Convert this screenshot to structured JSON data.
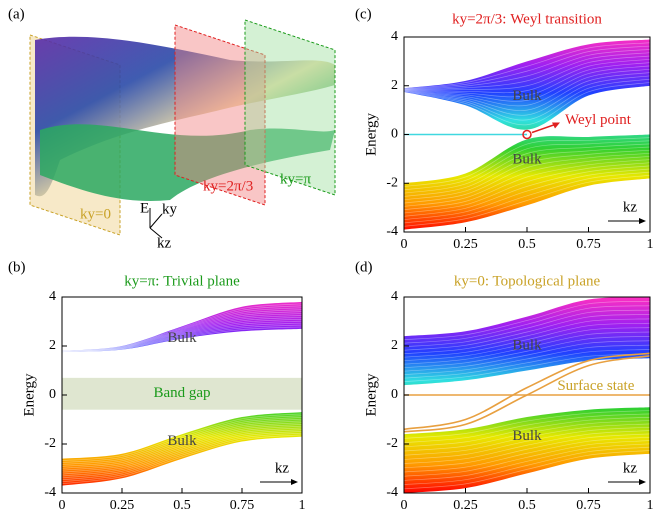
{
  "panels": [
    "(a)",
    "(b)",
    "(c)",
    "(d)"
  ],
  "illustration": {
    "planes": [
      "ky=0",
      "ky=2π/3",
      "ky=π"
    ],
    "axes": [
      "E",
      "ky",
      "kz"
    ]
  },
  "chart_data": [
    {
      "type": "band",
      "title": "ky=π: Trivial plane",
      "title_color": "#1a9a1a",
      "ylabel": "Energy",
      "xlabel": "kz",
      "x": [
        0,
        0.25,
        0.5,
        0.75,
        1
      ],
      "xlim": [
        0,
        1
      ],
      "ylim": [
        -4,
        4
      ],
      "xticks": [
        0,
        0.25,
        0.5,
        0.75,
        1
      ],
      "yticks": [
        -4,
        -2,
        0,
        2,
        4
      ],
      "bands": [
        {
          "lower": [
            1.75,
            1.85,
            2.3,
            2.6,
            2.7
          ],
          "upper": [
            1.8,
            2.0,
            2.8,
            3.6,
            3.8
          ]
        },
        {
          "lower": [
            -3.7,
            -3.4,
            -2.6,
            -1.9,
            -1.7
          ],
          "upper": [
            -2.6,
            -2.4,
            -1.6,
            -0.9,
            -0.7
          ]
        }
      ],
      "annotations": [
        "Bulk",
        "Bulk"
      ],
      "gap": [
        -0.6,
        0.7
      ],
      "gap_label": "Band gap",
      "gap_color": "#dfe6d0"
    },
    {
      "type": "band",
      "title": "ky=2π/3: Weyl transition",
      "title_color": "#e02020",
      "ylabel": "Energy",
      "xlabel": "kz",
      "x": [
        0,
        0.25,
        0.5,
        0.75,
        1
      ],
      "xlim": [
        0,
        1
      ],
      "ylim": [
        -4,
        4
      ],
      "xticks": [
        0,
        0.25,
        0.5,
        0.75,
        1
      ],
      "yticks": [
        -4,
        -2,
        0,
        2,
        4
      ],
      "bands": [
        {
          "lower": [
            1.75,
            1.2,
            0.2,
            1.6,
            2.0
          ],
          "upper": [
            1.9,
            2.2,
            3.0,
            3.7,
            3.9
          ]
        },
        {
          "lower": [
            -3.9,
            -3.6,
            -2.9,
            -2.1,
            -1.8
          ],
          "upper": [
            -2.0,
            -1.6,
            -0.2,
            -0.1,
            0
          ]
        }
      ],
      "lines": [
        {
          "color": "#40d8e0",
          "values": [
            0,
            0,
            0,
            null,
            null
          ]
        }
      ],
      "annotations": [
        "Bulk",
        "Bulk"
      ],
      "weyl_point": {
        "x": 0.5,
        "y": 0,
        "label": "Weyl point",
        "color": "#e02020"
      }
    },
    {
      "type": "band",
      "title": "ky=0: Topological plane",
      "title_color": "#c9a227",
      "ylabel": "Energy",
      "xlabel": "kz",
      "x": [
        0,
        0.25,
        0.5,
        0.75,
        1
      ],
      "xlim": [
        0,
        1
      ],
      "ylim": [
        -4,
        4
      ],
      "xticks": [
        0,
        0.25,
        0.5,
        0.75,
        1
      ],
      "yticks": [
        -4,
        -2,
        0,
        2,
        4
      ],
      "bands": [
        {
          "lower": [
            0.4,
            0.6,
            1.0,
            1.4,
            1.5
          ],
          "upper": [
            2.4,
            2.6,
            3.2,
            3.9,
            4.0
          ]
        },
        {
          "lower": [
            -4.0,
            -3.8,
            -3.2,
            -2.6,
            -2.4
          ],
          "upper": [
            -1.6,
            -1.4,
            -0.9,
            -0.6,
            -0.5
          ]
        }
      ],
      "lines": [
        {
          "color": "#e8a040",
          "values": [
            0,
            0,
            0,
            0,
            0
          ]
        },
        {
          "color": "#e8a040",
          "values": [
            -1.5,
            -1.2,
            0,
            1.2,
            1.6
          ]
        },
        {
          "color": "#e8a040",
          "values": [
            -1.4,
            -1.0,
            0.3,
            1.4,
            1.7
          ]
        }
      ],
      "annotations": [
        "Bulk",
        "Surface state",
        "Bulk"
      ]
    }
  ]
}
